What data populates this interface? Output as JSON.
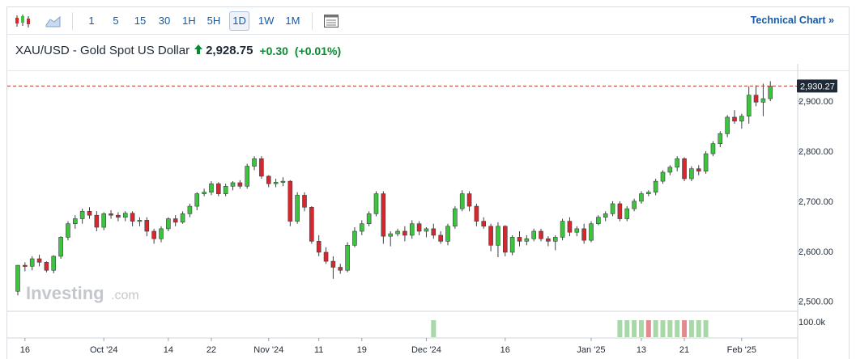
{
  "toolbar": {
    "intervals": [
      "1",
      "5",
      "15",
      "30",
      "1H",
      "5H",
      "1D",
      "1W",
      "1M"
    ],
    "active_interval": "1D",
    "technical_chart_label": "Technical Chart »"
  },
  "quote": {
    "name": "XAU/USD - Gold Spot US Dollar",
    "price": "2,928.75",
    "change": "+0.30",
    "change_pct": "(+0.01%)"
  },
  "watermark": {
    "brand": "Investing",
    "suffix": ".com"
  },
  "colors": {
    "up": "#3cc43c",
    "down": "#d6262e",
    "vol_up": "#a8d8a8",
    "vol_down": "#e28a8f",
    "price_line": "#c0392b",
    "accent": "#1559a8"
  },
  "chart_data": {
    "type": "candlestick",
    "instrument": "XAU/USD",
    "interval": "1D",
    "ylim": [
      2480,
      2960
    ],
    "yticks": [
      2500,
      2600,
      2700,
      2800,
      2900
    ],
    "ytick_labels": [
      "2,500.00",
      "2,600.00",
      "2,700.00",
      "2,800.00",
      "2,900.00"
    ],
    "last_price_label": "2,930.27",
    "last_price": 2930.27,
    "xtick_labels": [
      {
        "label": "16",
        "index": 1
      },
      {
        "label": "Oct '24",
        "index": 12
      },
      {
        "label": "14",
        "index": 21
      },
      {
        "label": "22",
        "index": 27
      },
      {
        "label": "Nov '24",
        "index": 35
      },
      {
        "label": "11",
        "index": 42
      },
      {
        "label": "19",
        "index": 48
      },
      {
        "label": "Dec '24",
        "index": 57
      },
      {
        "label": "16",
        "index": 68
      },
      {
        "label": "Jan '25",
        "index": 80
      },
      {
        "label": "13",
        "index": 87
      },
      {
        "label": "21",
        "index": 93
      },
      {
        "label": "Feb '25",
        "index": 101
      }
    ],
    "candles": [
      [
        2520,
        2572,
        2512,
        2572
      ],
      [
        2572,
        2578,
        2560,
        2570
      ],
      [
        2570,
        2590,
        2562,
        2585
      ],
      [
        2585,
        2593,
        2570,
        2578
      ],
      [
        2578,
        2580,
        2558,
        2562
      ],
      [
        2562,
        2592,
        2556,
        2590
      ],
      [
        2590,
        2630,
        2585,
        2628
      ],
      [
        2628,
        2660,
        2622,
        2655
      ],
      [
        2655,
        2672,
        2645,
        2665
      ],
      [
        2665,
        2685,
        2655,
        2680
      ],
      [
        2680,
        2688,
        2665,
        2672
      ],
      [
        2672,
        2680,
        2640,
        2648
      ],
      [
        2648,
        2678,
        2642,
        2675
      ],
      [
        2675,
        2682,
        2665,
        2672
      ],
      [
        2672,
        2678,
        2660,
        2668
      ],
      [
        2668,
        2680,
        2660,
        2676
      ],
      [
        2676,
        2680,
        2650,
        2660
      ],
      [
        2660,
        2668,
        2650,
        2662
      ],
      [
        2662,
        2668,
        2630,
        2640
      ],
      [
        2640,
        2645,
        2615,
        2625
      ],
      [
        2625,
        2650,
        2618,
        2645
      ],
      [
        2645,
        2668,
        2640,
        2665
      ],
      [
        2665,
        2672,
        2650,
        2658
      ],
      [
        2658,
        2680,
        2655,
        2675
      ],
      [
        2675,
        2695,
        2668,
        2690
      ],
      [
        2690,
        2718,
        2682,
        2715
      ],
      [
        2715,
        2725,
        2710,
        2718
      ],
      [
        2718,
        2740,
        2712,
        2735
      ],
      [
        2735,
        2738,
        2710,
        2715
      ],
      [
        2715,
        2735,
        2710,
        2730
      ],
      [
        2730,
        2740,
        2722,
        2737
      ],
      [
        2737,
        2742,
        2725,
        2730
      ],
      [
        2730,
        2775,
        2725,
        2770
      ],
      [
        2770,
        2790,
        2762,
        2785
      ],
      [
        2785,
        2790,
        2745,
        2750
      ],
      [
        2750,
        2752,
        2728,
        2735
      ],
      [
        2735,
        2745,
        2728,
        2738
      ],
      [
        2738,
        2748,
        2730,
        2740
      ],
      [
        2740,
        2742,
        2650,
        2660
      ],
      [
        2660,
        2718,
        2655,
        2712
      ],
      [
        2712,
        2718,
        2680,
        2688
      ],
      [
        2688,
        2690,
        2615,
        2620
      ],
      [
        2620,
        2632,
        2590,
        2598
      ],
      [
        2598,
        2608,
        2575,
        2580
      ],
      [
        2580,
        2590,
        2545,
        2568
      ],
      [
        2568,
        2575,
        2555,
        2562
      ],
      [
        2562,
        2618,
        2558,
        2612
      ],
      [
        2612,
        2648,
        2608,
        2640
      ],
      [
        2640,
        2662,
        2632,
        2655
      ],
      [
        2655,
        2680,
        2650,
        2675
      ],
      [
        2675,
        2720,
        2670,
        2715
      ],
      [
        2715,
        2720,
        2615,
        2630
      ],
      [
        2630,
        2640,
        2610,
        2635
      ],
      [
        2635,
        2645,
        2630,
        2640
      ],
      [
        2640,
        2650,
        2620,
        2632
      ],
      [
        2632,
        2662,
        2625,
        2655
      ],
      [
        2655,
        2660,
        2632,
        2640
      ],
      [
        2640,
        2648,
        2628,
        2645
      ],
      [
        2645,
        2655,
        2625,
        2632
      ],
      [
        2632,
        2640,
        2615,
        2620
      ],
      [
        2620,
        2655,
        2612,
        2650
      ],
      [
        2650,
        2690,
        2645,
        2685
      ],
      [
        2685,
        2722,
        2680,
        2715
      ],
      [
        2715,
        2720,
        2680,
        2690
      ],
      [
        2690,
        2695,
        2650,
        2660
      ],
      [
        2660,
        2668,
        2645,
        2650
      ],
      [
        2650,
        2655,
        2600,
        2612
      ],
      [
        2612,
        2658,
        2588,
        2650
      ],
      [
        2650,
        2652,
        2590,
        2598
      ],
      [
        2598,
        2632,
        2592,
        2628
      ],
      [
        2628,
        2640,
        2610,
        2620
      ],
      [
        2620,
        2632,
        2612,
        2625
      ],
      [
        2625,
        2645,
        2620,
        2640
      ],
      [
        2640,
        2645,
        2620,
        2625
      ],
      [
        2625,
        2630,
        2610,
        2620
      ],
      [
        2620,
        2632,
        2602,
        2628
      ],
      [
        2628,
        2665,
        2622,
        2660
      ],
      [
        2660,
        2668,
        2630,
        2638
      ],
      [
        2638,
        2650,
        2630,
        2645
      ],
      [
        2645,
        2655,
        2615,
        2622
      ],
      [
        2622,
        2660,
        2618,
        2655
      ],
      [
        2655,
        2672,
        2652,
        2668
      ],
      [
        2668,
        2680,
        2660,
        2675
      ],
      [
        2675,
        2700,
        2670,
        2695
      ],
      [
        2695,
        2700,
        2660,
        2665
      ],
      [
        2665,
        2690,
        2660,
        2685
      ],
      [
        2685,
        2705,
        2680,
        2700
      ],
      [
        2700,
        2720,
        2695,
        2715
      ],
      [
        2715,
        2722,
        2710,
        2718
      ],
      [
        2718,
        2745,
        2712,
        2740
      ],
      [
        2740,
        2762,
        2735,
        2758
      ],
      [
        2758,
        2772,
        2752,
        2768
      ],
      [
        2768,
        2790,
        2760,
        2785
      ],
      [
        2785,
        2788,
        2740,
        2745
      ],
      [
        2745,
        2770,
        2740,
        2765
      ],
      [
        2765,
        2772,
        2752,
        2760
      ],
      [
        2760,
        2800,
        2755,
        2795
      ],
      [
        2795,
        2820,
        2790,
        2815
      ],
      [
        2815,
        2840,
        2808,
        2835
      ],
      [
        2835,
        2872,
        2828,
        2868
      ],
      [
        2868,
        2882,
        2855,
        2860
      ],
      [
        2860,
        2875,
        2845,
        2870
      ],
      [
        2870,
        2930,
        2855,
        2912
      ],
      [
        2912,
        2932,
        2890,
        2898
      ],
      [
        2898,
        2935,
        2870,
        2905
      ],
      [
        2905,
        2940,
        2900,
        2930
      ]
    ],
    "volume": {
      "label": "100.0k",
      "bars": [
        {
          "index": 58,
          "up": true
        },
        {
          "index": 84,
          "up": true
        },
        {
          "index": 85,
          "up": true
        },
        {
          "index": 86,
          "up": true
        },
        {
          "index": 87,
          "up": true
        },
        {
          "index": 88,
          "up": false
        },
        {
          "index": 89,
          "up": true
        },
        {
          "index": 90,
          "up": true
        },
        {
          "index": 91,
          "up": true
        },
        {
          "index": 92,
          "up": true
        },
        {
          "index": 93,
          "up": false
        },
        {
          "index": 94,
          "up": true
        },
        {
          "index": 95,
          "up": true
        },
        {
          "index": 96,
          "up": true
        }
      ]
    }
  }
}
